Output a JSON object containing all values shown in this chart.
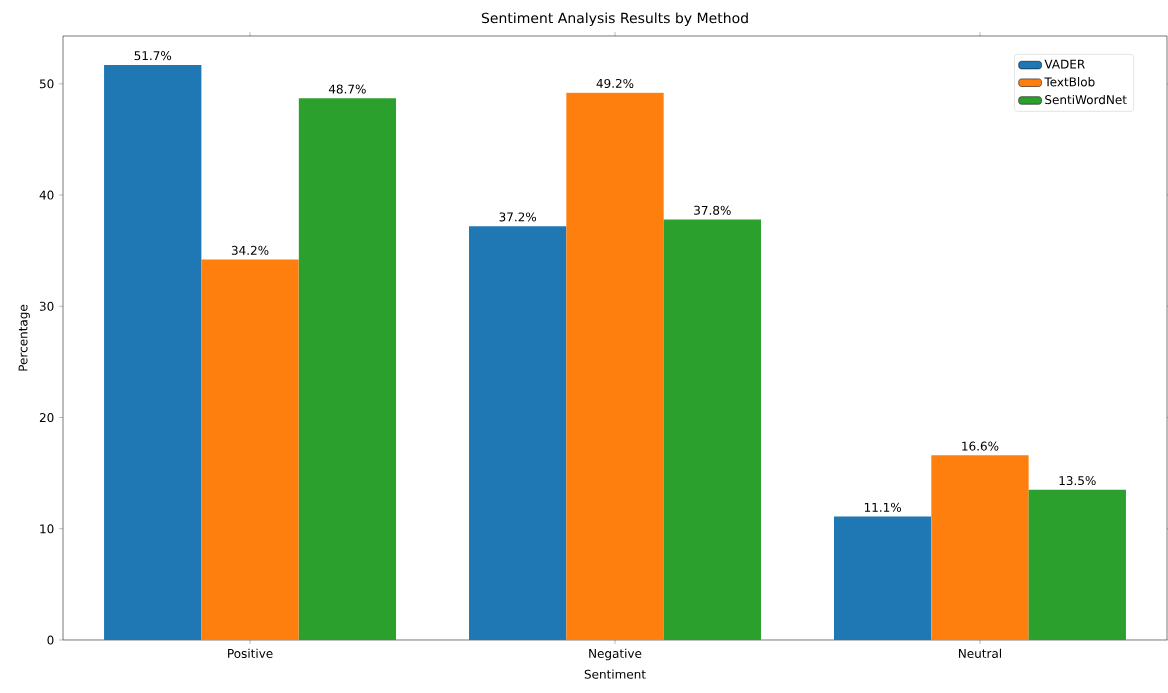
{
  "chart_data": {
    "type": "bar",
    "title": "Sentiment Analysis Results by Method",
    "xlabel": "Sentiment",
    "ylabel": "Percentage",
    "categories": [
      "Positive",
      "Negative",
      "Neutral"
    ],
    "series": [
      {
        "name": "VADER",
        "color": "#1f77b4",
        "values": [
          51.7,
          37.2,
          11.1
        ],
        "value_labels": [
          "51.7%",
          "37.2%",
          "11.1%"
        ]
      },
      {
        "name": "TextBlob",
        "color": "#ff7f0e",
        "values": [
          34.2,
          49.2,
          16.6
        ],
        "value_labels": [
          "34.2%",
          "49.2%",
          "16.6%"
        ]
      },
      {
        "name": "SentiWordNet",
        "color": "#2ca02c",
        "values": [
          48.7,
          37.8,
          13.5
        ],
        "value_labels": [
          "48.7%",
          "37.8%",
          "13.5%"
        ]
      }
    ],
    "ylim": [
      0,
      54.3
    ],
    "yticks": [
      0,
      10,
      20,
      30,
      40,
      50
    ],
    "legend": "top right"
  }
}
